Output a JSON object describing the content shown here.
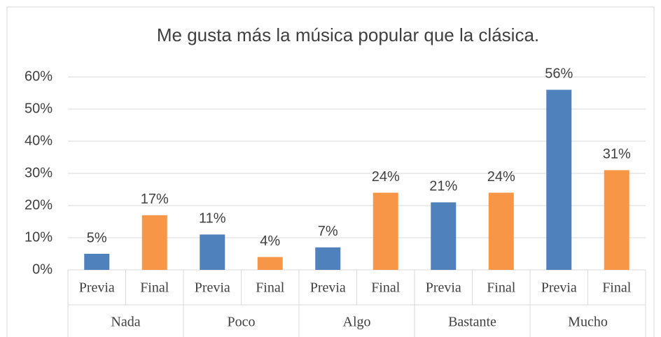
{
  "chart_data": {
    "type": "grouped-bar",
    "title": "Me gusta más la música popular que la clásica.",
    "groups": [
      "Nada",
      "Poco",
      "Algo",
      "Bastante",
      "Mucho"
    ],
    "series": [
      {
        "name": "Previa",
        "color": "#4f81bd",
        "values": [
          5,
          11,
          7,
          21,
          56
        ],
        "value_labels": [
          "5%",
          "11%",
          "7%",
          "21%",
          "56%"
        ]
      },
      {
        "name": "Final",
        "color": "#f79646",
        "values": [
          17,
          4,
          24,
          24,
          31
        ],
        "value_labels": [
          "17%",
          "4%",
          "24%",
          "24%",
          "31%"
        ]
      }
    ],
    "ylim": [
      0,
      60
    ],
    "yticks": [
      {
        "value": 0,
        "label": "0%"
      },
      {
        "value": 10,
        "label": "10%"
      },
      {
        "value": 20,
        "label": "20%"
      },
      {
        "value": 30,
        "label": "30%"
      },
      {
        "value": 40,
        "label": "40%"
      },
      {
        "value": 50,
        "label": "50%"
      },
      {
        "value": 60,
        "label": "60%"
      }
    ],
    "grid": true
  }
}
